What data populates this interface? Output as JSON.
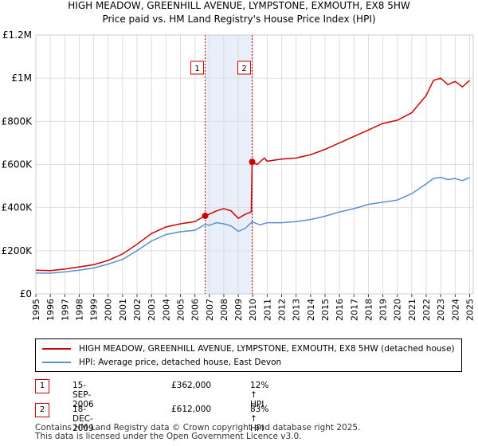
{
  "title_line1": "HIGH MEADOW, GREENHILL AVENUE, LYMPSTONE, EXMOUTH, EX8 5HW",
  "title_line2": "Price paid vs. HM Land Registry's House Price Index (HPI)",
  "chart_data": {
    "type": "line",
    "ylim": [
      0,
      1200000
    ],
    "xlim": [
      1995.0,
      2025.25
    ],
    "y_ticks": [
      {
        "value": 0,
        "label": "£0"
      },
      {
        "value": 200000,
        "label": "£200K"
      },
      {
        "value": 400000,
        "label": "£400K"
      },
      {
        "value": 600000,
        "label": "£600K"
      },
      {
        "value": 800000,
        "label": "£800K"
      },
      {
        "value": 1000000,
        "label": "£1M"
      },
      {
        "value": 1200000,
        "label": "£1.2M"
      }
    ],
    "x_ticks": [
      "1995",
      "1996",
      "1997",
      "1998",
      "1999",
      "2000",
      "2001",
      "2002",
      "2003",
      "2004",
      "2005",
      "2006",
      "2007",
      "2008",
      "2009",
      "2010",
      "2011",
      "2012",
      "2013",
      "2014",
      "2015",
      "2016",
      "2017",
      "2018",
      "2019",
      "2020",
      "2021",
      "2022",
      "2023",
      "2024",
      "2025"
    ],
    "grid": true,
    "shaded_region": [
      2006.71,
      2009.96
    ],
    "series": [
      {
        "name": "HIGH MEADOW, GREENHILL AVENUE, LYMPSTONE, EXMOUTH, EX8 5HW (detached house)",
        "color": "#cc0000",
        "points": [
          [
            1995.0,
            110000
          ],
          [
            1996.0,
            108000
          ],
          [
            1997.0,
            115000
          ],
          [
            1998.0,
            125000
          ],
          [
            1999.0,
            135000
          ],
          [
            2000.0,
            155000
          ],
          [
            2001.0,
            185000
          ],
          [
            2002.0,
            230000
          ],
          [
            2003.0,
            280000
          ],
          [
            2004.0,
            310000
          ],
          [
            2005.0,
            325000
          ],
          [
            2006.0,
            335000
          ],
          [
            2006.71,
            362000
          ],
          [
            2007.0,
            370000
          ],
          [
            2007.5,
            385000
          ],
          [
            2008.0,
            395000
          ],
          [
            2008.5,
            385000
          ],
          [
            2009.0,
            350000
          ],
          [
            2009.5,
            370000
          ],
          [
            2009.9,
            380000
          ],
          [
            2009.96,
            612000
          ],
          [
            2010.3,
            600000
          ],
          [
            2010.8,
            630000
          ],
          [
            2011.0,
            615000
          ],
          [
            2012.0,
            625000
          ],
          [
            2013.0,
            630000
          ],
          [
            2014.0,
            645000
          ],
          [
            2015.0,
            670000
          ],
          [
            2016.0,
            700000
          ],
          [
            2017.0,
            730000
          ],
          [
            2018.0,
            760000
          ],
          [
            2019.0,
            790000
          ],
          [
            2020.0,
            805000
          ],
          [
            2021.0,
            840000
          ],
          [
            2022.0,
            920000
          ],
          [
            2022.5,
            990000
          ],
          [
            2023.0,
            1000000
          ],
          [
            2023.5,
            970000
          ],
          [
            2024.0,
            985000
          ],
          [
            2024.5,
            960000
          ],
          [
            2025.0,
            990000
          ]
        ]
      },
      {
        "name": "HPI: Average price, detached house, East Devon",
        "color": "#5b8fd0",
        "points": [
          [
            1995.0,
            97000
          ],
          [
            1996.0,
            96000
          ],
          [
            1997.0,
            102000
          ],
          [
            1998.0,
            110000
          ],
          [
            1999.0,
            120000
          ],
          [
            2000.0,
            138000
          ],
          [
            2001.0,
            160000
          ],
          [
            2002.0,
            200000
          ],
          [
            2003.0,
            245000
          ],
          [
            2004.0,
            275000
          ],
          [
            2005.0,
            288000
          ],
          [
            2006.0,
            295000
          ],
          [
            2006.71,
            322000
          ],
          [
            2007.0,
            318000
          ],
          [
            2007.5,
            330000
          ],
          [
            2008.0,
            325000
          ],
          [
            2008.5,
            315000
          ],
          [
            2009.0,
            290000
          ],
          [
            2009.5,
            305000
          ],
          [
            2009.96,
            334000
          ],
          [
            2010.5,
            320000
          ],
          [
            2011.0,
            330000
          ],
          [
            2012.0,
            330000
          ],
          [
            2013.0,
            335000
          ],
          [
            2014.0,
            345000
          ],
          [
            2015.0,
            360000
          ],
          [
            2016.0,
            380000
          ],
          [
            2017.0,
            395000
          ],
          [
            2018.0,
            415000
          ],
          [
            2019.0,
            425000
          ],
          [
            2020.0,
            435000
          ],
          [
            2021.0,
            465000
          ],
          [
            2022.0,
            510000
          ],
          [
            2022.5,
            535000
          ],
          [
            2023.0,
            540000
          ],
          [
            2023.5,
            530000
          ],
          [
            2024.0,
            535000
          ],
          [
            2024.5,
            525000
          ],
          [
            2025.0,
            540000
          ]
        ]
      }
    ],
    "sales": [
      {
        "label": "1",
        "x": 2006.71,
        "value": 362000
      },
      {
        "label": "2",
        "x": 2009.96,
        "value": 612000
      }
    ]
  },
  "sales_table": [
    {
      "label": "1",
      "date": "15-SEP-2006",
      "price": "£362,000",
      "hpi": "12% ↑ HPI"
    },
    {
      "label": "2",
      "date": "18-DEC-2009",
      "price": "£612,000",
      "hpi": "83% ↑ HPI"
    }
  ],
  "legend": {
    "property": "HIGH MEADOW, GREENHILL AVENUE, LYMPSTONE, EXMOUTH, EX8 5HW (detached house)",
    "hpi": "HPI: Average price, detached house, East Devon",
    "property_color": "#cc0000",
    "hpi_color": "#5b8fd0"
  },
  "footer_line1": "Contains HM Land Registry data © Crown copyright and database right 2025.",
  "footer_line2": "This data is licensed under the Open Government Licence v3.0."
}
